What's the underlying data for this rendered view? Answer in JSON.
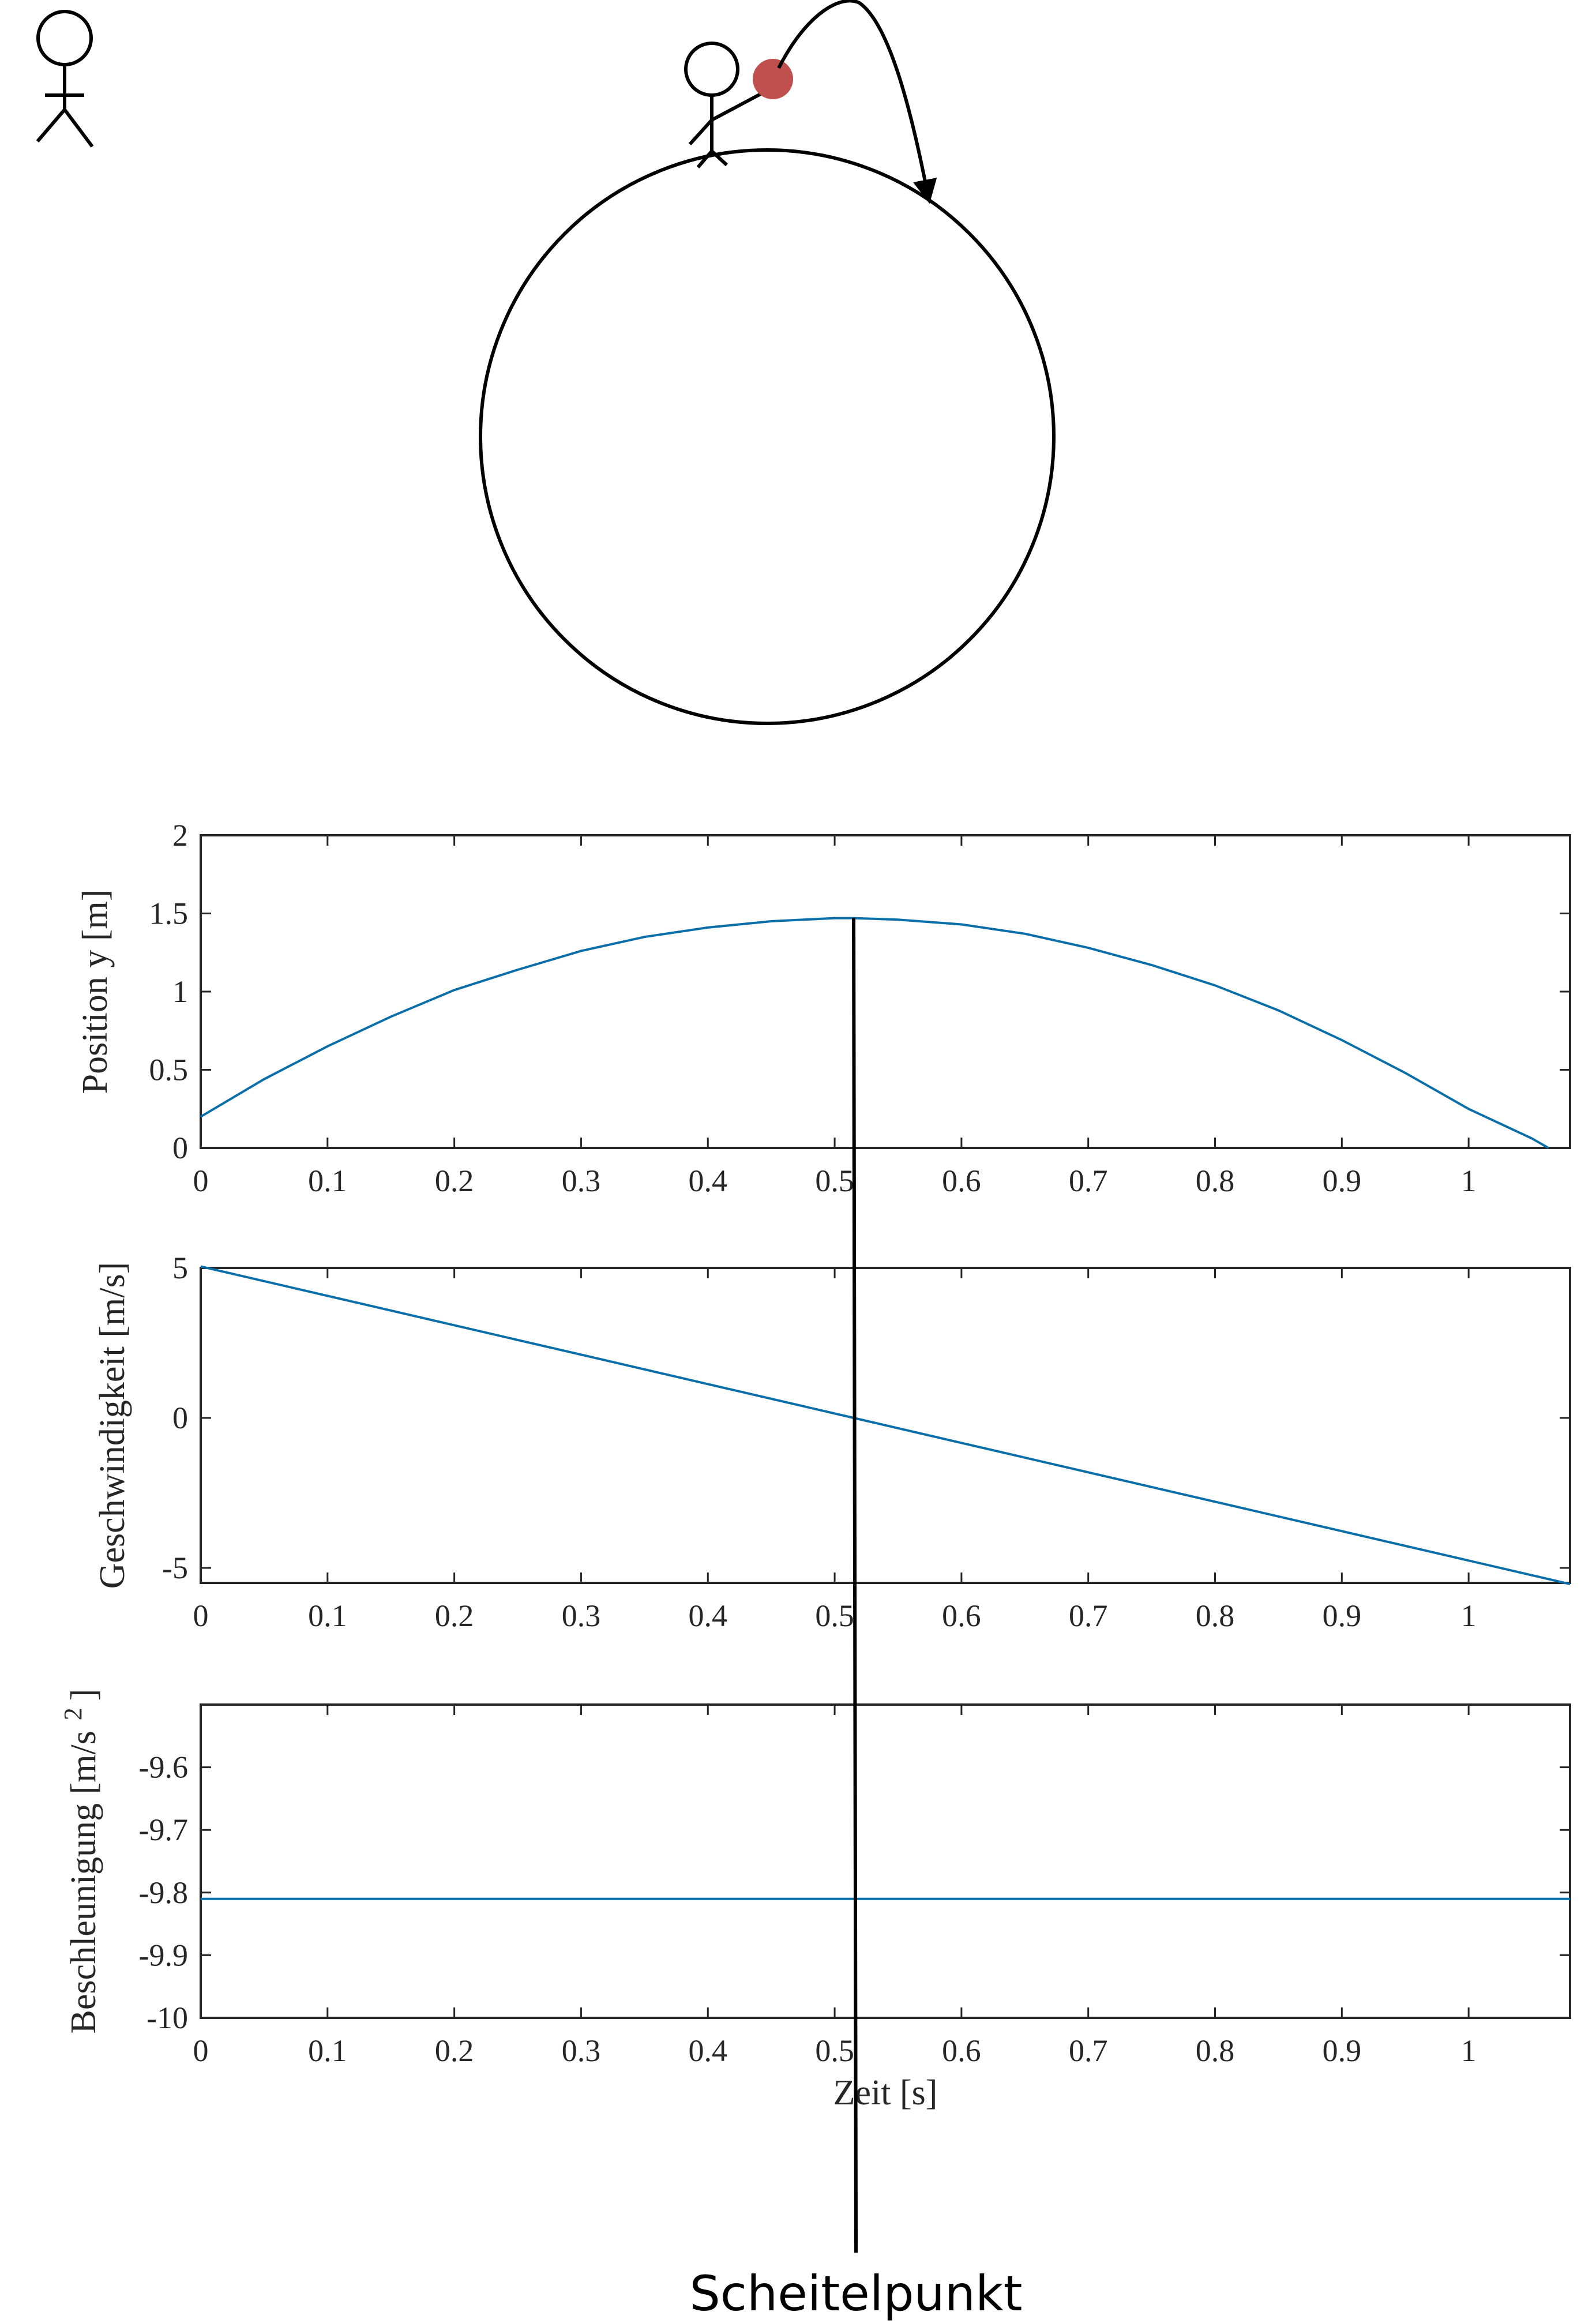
{
  "figure": {
    "apex_label": "Scheitelpunkt",
    "apex_time": 0.515,
    "colors": {
      "series": "#0a6ea8",
      "ball": "#c0504d",
      "ink": "#000000",
      "axes": "#262626",
      "background": "#ffffff"
    },
    "illustration_icons": [
      "observer-stick-figure-icon",
      "thrower-stick-figure-icon",
      "planet-circle",
      "ball-icon",
      "trajectory-arrow-icon"
    ]
  },
  "chart_data": [
    {
      "type": "line",
      "ylabel": "Position y [m]",
      "xlabel": "",
      "xlim": [
        0,
        1.08
      ],
      "ylim": [
        0,
        2
      ],
      "x_ticks": [
        0,
        0.1,
        0.2,
        0.3,
        0.4,
        0.5,
        0.6,
        0.7,
        0.8,
        0.9,
        1
      ],
      "x_tick_labels": [
        "0",
        "0.1",
        "0.2",
        "0.3",
        "0.4",
        "0.5",
        "0.6",
        "0.7",
        "0.8",
        "0.9",
        "1"
      ],
      "y_ticks": [
        0,
        0.5,
        1,
        1.5,
        2
      ],
      "y_tick_labels": [
        "0",
        "0.5",
        "1",
        "1.5",
        "2"
      ],
      "grid": false,
      "series": [
        {
          "x": [
            0,
            0.05,
            0.1,
            0.15,
            0.2,
            0.25,
            0.3,
            0.35,
            0.4,
            0.45,
            0.5,
            0.515,
            0.55,
            0.6,
            0.65,
            0.7,
            0.75,
            0.8,
            0.85,
            0.9,
            0.95,
            1.0,
            1.05,
            1.063
          ],
          "y": [
            0.2,
            0.44,
            0.65,
            0.84,
            1.01,
            1.14,
            1.26,
            1.35,
            1.41,
            1.45,
            1.47,
            1.47,
            1.46,
            1.43,
            1.37,
            1.28,
            1.17,
            1.04,
            0.88,
            0.69,
            0.48,
            0.25,
            0.06,
            0
          ]
        }
      ]
    },
    {
      "type": "line",
      "ylabel": "Geschwindigkeit [m/s]",
      "xlabel": "",
      "xlim": [
        0,
        1.08
      ],
      "ylim": [
        -5.5,
        5
      ],
      "x_ticks": [
        0,
        0.1,
        0.2,
        0.3,
        0.4,
        0.5,
        0.6,
        0.7,
        0.8,
        0.9,
        1
      ],
      "x_tick_labels": [
        "0",
        "0.1",
        "0.2",
        "0.3",
        "0.4",
        "0.5",
        "0.6",
        "0.7",
        "0.8",
        "0.9",
        "1"
      ],
      "y_ticks": [
        -5,
        0,
        5
      ],
      "y_tick_labels": [
        "-5",
        "0",
        "5"
      ],
      "grid": false,
      "series": [
        {
          "x": [
            0,
            0.515,
            1.08
          ],
          "y": [
            5.05,
            0,
            -5.54
          ]
        }
      ]
    },
    {
      "type": "line",
      "ylabel": "Beschleunigung [m/s",
      "ylabel_superscript": "2",
      "ylabel_suffix": "]",
      "xlabel": "Zeit [s]",
      "xlim": [
        0,
        1.08
      ],
      "ylim": [
        -10,
        -9.5
      ],
      "x_ticks": [
        0,
        0.1,
        0.2,
        0.3,
        0.4,
        0.5,
        0.6,
        0.7,
        0.8,
        0.9,
        1
      ],
      "x_tick_labels": [
        "0",
        "0.1",
        "0.2",
        "0.3",
        "0.4",
        "0.5",
        "0.6",
        "0.7",
        "0.8",
        "0.9",
        "1"
      ],
      "y_ticks": [
        -10,
        -9.9,
        -9.8,
        -9.7,
        -9.6
      ],
      "y_tick_labels": [
        "-10",
        "-9.9",
        "-9.8",
        "-9.7",
        "-9.6"
      ],
      "grid": false,
      "series": [
        {
          "x": [
            0,
            1.08
          ],
          "y": [
            -9.81,
            -9.81
          ]
        }
      ]
    }
  ]
}
